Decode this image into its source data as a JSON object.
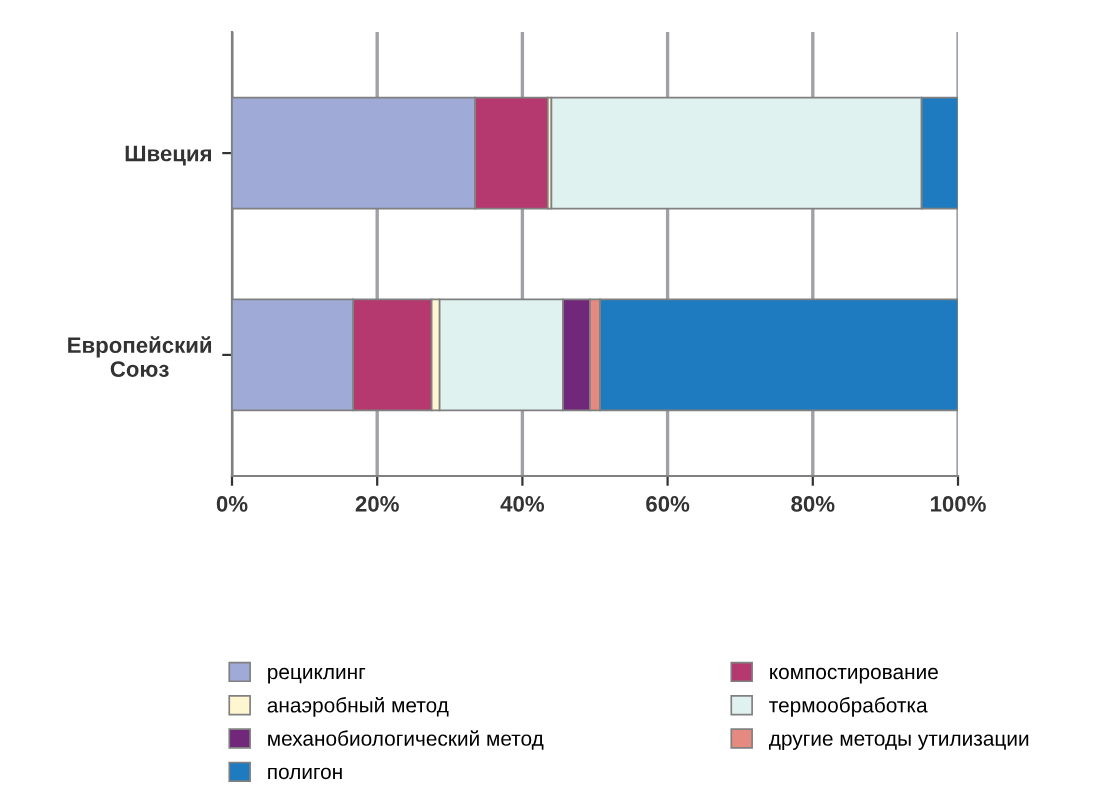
{
  "chart_data": {
    "type": "bar",
    "orientation": "horizontal",
    "stacked": true,
    "categories": [
      "Швеция",
      "Европейский\nСоюз"
    ],
    "series": [
      {
        "name": "рециклинг",
        "color": "#9faad6",
        "values": [
          33.5,
          16.7
        ]
      },
      {
        "name": "компостирование",
        "color": "#b5386f",
        "values": [
          10,
          10.8
        ]
      },
      {
        "name": "анаэробный метод",
        "color": "#fdf6d0",
        "values": [
          0.5,
          1.1
        ]
      },
      {
        "name": "термообработка",
        "color": "#e0f2f0",
        "values": [
          51,
          17
        ]
      },
      {
        "name": "механобиологический метод",
        "color": "#72287a",
        "values": [
          0,
          3.7
        ]
      },
      {
        "name": "другие методы утилизации",
        "color": "#e58a80",
        "values": [
          0,
          1.4
        ]
      },
      {
        "name": "полигон",
        "color": "#1f7bbf",
        "values": [
          5,
          49.3
        ]
      }
    ],
    "xlim": [
      0,
      100
    ],
    "xticks": [
      {
        "value": 0,
        "label": "0%"
      },
      {
        "value": 20,
        "label": "20%"
      },
      {
        "value": 40,
        "label": "40%"
      },
      {
        "value": 60,
        "label": "60%"
      },
      {
        "value": 80,
        "label": "80%"
      },
      {
        "value": 100,
        "label": "100%"
      }
    ],
    "grid": "x",
    "legend": "bottom"
  }
}
